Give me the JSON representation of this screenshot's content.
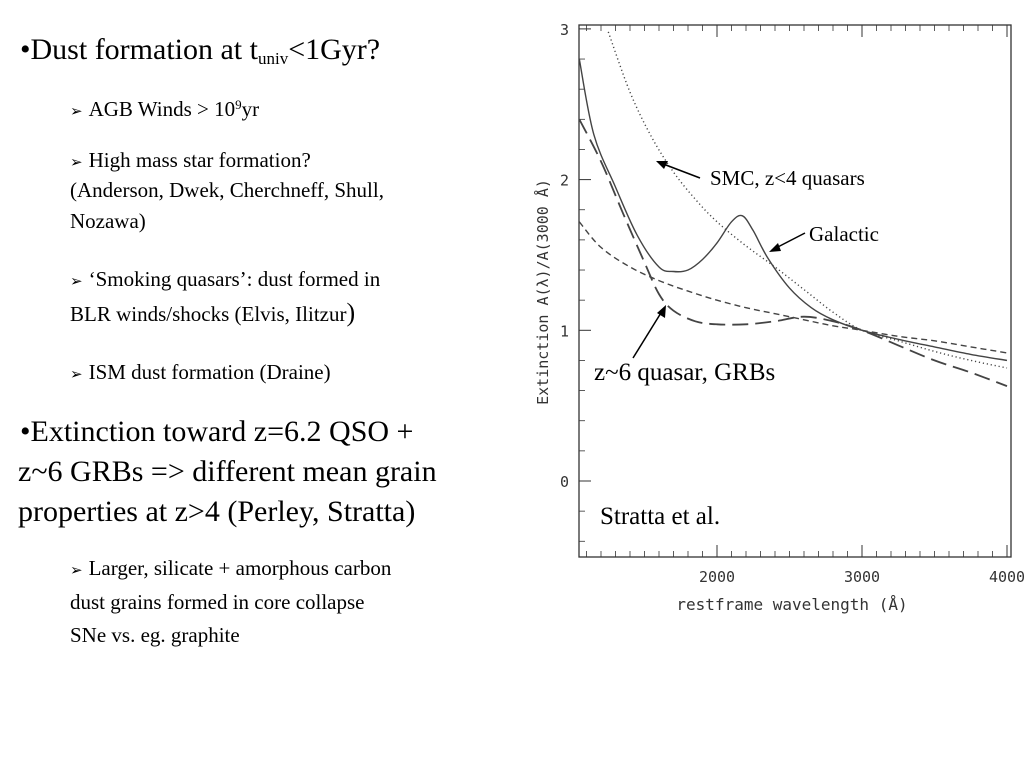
{
  "bullets": {
    "b1": {
      "mark": "•",
      "text_a": "Dust formation at t",
      "sub": "univ",
      "text_b": "<1Gyr?"
    },
    "b1_1": {
      "mark": "➢",
      "text_a": "AGB Winds > 10",
      "sup": "9",
      "text_b": "yr"
    },
    "b1_2": {
      "mark": "➢",
      "line1": "High mass star formation?",
      "line2": "(Anderson, Dwek, Cherchneff, Shull,",
      "line3": "Nozawa)"
    },
    "b1_3": {
      "mark": "➢",
      "line1": "‘Smoking quasars’: dust formed in",
      "line2": "BLR winds/shocks (Elvis, Ilitzur",
      "close": ")"
    },
    "b1_4": {
      "mark": "➢",
      "text": "ISM dust formation (Draine)"
    },
    "b2": {
      "mark": "•",
      "line1": "Extinction toward z=6.2 QSO +",
      "line2": "z~6 GRBs  =>  different mean grain",
      "line3": "properties at z>4 (Perley, Stratta)"
    },
    "b2_1": {
      "mark": "➢",
      "line1": "Larger, silicate + amorphous carbon",
      "line2": "dust grains formed in core collapse",
      "line3": "SNe vs. eg. graphite"
    }
  },
  "annotations": {
    "smc": "SMC, z<4 quasars",
    "galactic": "Galactic",
    "z6": "z~6 quasar, GRBs",
    "credit": "Stratta et al."
  },
  "chart_data": {
    "type": "line",
    "xlabel": "restframe wavelength (Å)",
    "ylabel": "Extinction  A(λ)/A(3000 Å)",
    "xlim": [
      1050,
      4000
    ],
    "ylim": [
      -0.5,
      3.0
    ],
    "x_ticks": [
      2000,
      3000,
      4000
    ],
    "x_tick_labels": [
      "2000",
      "3000",
      "4000"
    ],
    "y_ticks": [
      0,
      1,
      2,
      3
    ],
    "y_tick_labels": [
      "0",
      "1",
      "2",
      "3"
    ],
    "grid": false,
    "series": [
      {
        "line_style": "dotted",
        "x": [
          1250,
          1400,
          1550,
          1700,
          1850,
          2000,
          2200,
          2400,
          2600,
          2800,
          3000,
          3250,
          3500,
          3750,
          4000
        ],
        "values": [
          2.98,
          2.58,
          2.28,
          2.05,
          1.87,
          1.72,
          1.56,
          1.42,
          1.27,
          1.12,
          1.0,
          0.93,
          0.86,
          0.8,
          0.75
        ]
      },
      {
        "line_style": "solid",
        "x": [
          1050,
          1150,
          1300,
          1450,
          1600,
          1700,
          1800,
          1900,
          2000,
          2100,
          2175,
          2250,
          2350,
          2500,
          2650,
          2800,
          3000,
          3250,
          3500,
          3750,
          4000
        ],
        "values": [
          2.8,
          2.3,
          1.95,
          1.63,
          1.42,
          1.39,
          1.4,
          1.47,
          1.58,
          1.72,
          1.76,
          1.66,
          1.48,
          1.28,
          1.15,
          1.07,
          1.0,
          0.94,
          0.89,
          0.84,
          0.8
        ]
      },
      {
        "line_style": "long-dashed",
        "x": [
          1050,
          1200,
          1350,
          1500,
          1600,
          1700,
          1850,
          2000,
          2200,
          2400,
          2600,
          2800,
          3000,
          3250,
          3500,
          3750,
          4000
        ],
        "values": [
          2.4,
          2.12,
          1.78,
          1.45,
          1.24,
          1.13,
          1.06,
          1.04,
          1.04,
          1.06,
          1.09,
          1.06,
          1.0,
          0.9,
          0.8,
          0.72,
          0.63
        ]
      },
      {
        "line_style": "short-dashed",
        "x": [
          1050,
          1200,
          1400,
          1600,
          1800,
          2000,
          2200,
          2400,
          2600,
          2800,
          3000,
          3250,
          3500,
          3750,
          4000
        ],
        "values": [
          1.72,
          1.55,
          1.42,
          1.33,
          1.26,
          1.2,
          1.15,
          1.11,
          1.07,
          1.03,
          1.0,
          0.96,
          0.93,
          0.89,
          0.85
        ]
      }
    ]
  }
}
